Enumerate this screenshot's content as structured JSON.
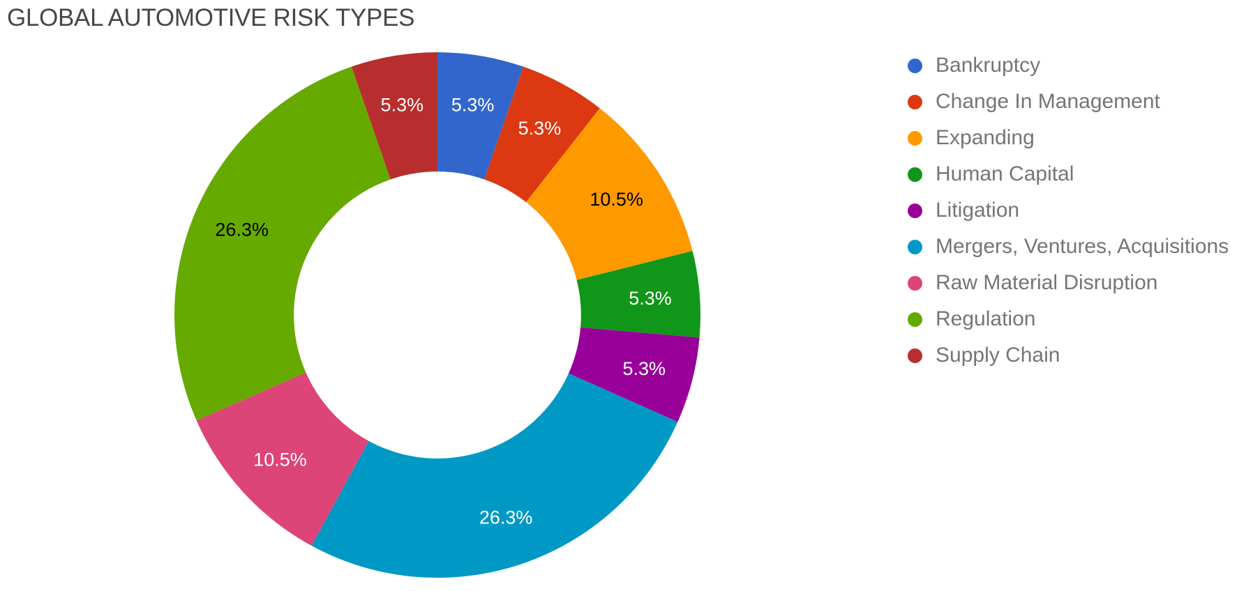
{
  "title": {
    "text": "GLOBAL AUTOMOTIVE RISK TYPES",
    "color": "#474747"
  },
  "legend": {
    "text_color": "#757575",
    "items": [
      {
        "label": "Bankruptcy",
        "color": "#3366CC"
      },
      {
        "label": "Change In Management",
        "color": "#DC3912"
      },
      {
        "label": "Expanding",
        "color": "#FF9900"
      },
      {
        "label": "Human Capital",
        "color": "#109618"
      },
      {
        "label": "Litigation",
        "color": "#990099"
      },
      {
        "label": "Mergers, Ventures, Acquisitions",
        "color": "#0099C6"
      },
      {
        "label": "Raw Material Disruption",
        "color": "#DD4477"
      },
      {
        "label": "Regulation",
        "color": "#66AA00"
      },
      {
        "label": "Supply Chain",
        "color": "#B82E2E"
      }
    ]
  },
  "chart_data": {
    "type": "pie",
    "donut": true,
    "title": "GLOBAL AUTOMOTIVE RISK TYPES",
    "categories": [
      "Bankruptcy",
      "Change In Management",
      "Expanding",
      "Human Capital",
      "Litigation",
      "Mergers, Ventures, Acquisitions",
      "Raw Material Disruption",
      "Regulation",
      "Supply Chain"
    ],
    "values": [
      5.3,
      5.3,
      10.5,
      5.3,
      5.3,
      26.3,
      10.5,
      26.3,
      5.3
    ],
    "percent_labels": [
      "5.3%",
      "5.3%",
      "10.5%",
      "5.3%",
      "5.3%",
      "26.3%",
      "10.5%",
      "26.3%",
      "5.3%"
    ],
    "colors": [
      "#3366CC",
      "#DC3912",
      "#FF9900",
      "#109618",
      "#990099",
      "#0099C6",
      "#DD4477",
      "#66AA00",
      "#B82E2E"
    ],
    "label_text_colors": [
      "#ffffff",
      "#ffffff",
      "#000000",
      "#ffffff",
      "#ffffff",
      "#ffffff",
      "#ffffff",
      "#000000",
      "#ffffff"
    ],
    "legend_position": "right",
    "start_angle_deg": 0,
    "direction": "clockwise",
    "hole_ratio": 0.546
  }
}
